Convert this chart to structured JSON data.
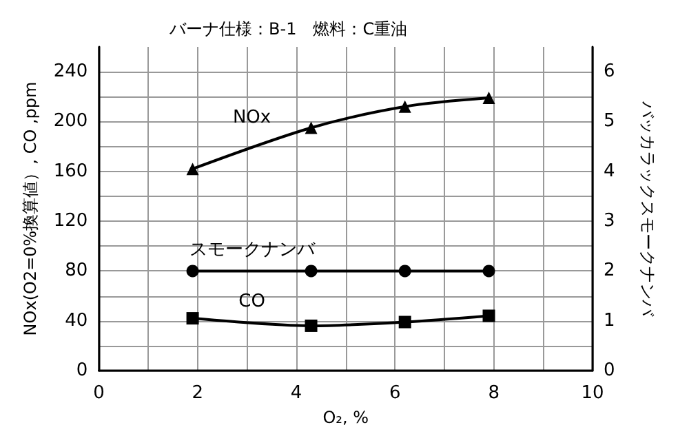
{
  "chart_data": {
    "type": "line",
    "title": "バーナ仕様：B-1　燃料：C重油",
    "xlabel": "O₂, %",
    "ylabel": "NOx(O2=0%換算値）, CO ,ppm",
    "y2label": "バッカラックスモークナンバ",
    "x": [
      1.9,
      4.3,
      6.2,
      7.9
    ],
    "series": [
      {
        "name": "NOx",
        "color": "#000000",
        "marker": "triangle",
        "values": [
          162,
          195,
          212,
          219
        ]
      },
      {
        "name": "スモークナンバ",
        "color": "#000000",
        "marker": "circle",
        "axis": "y2",
        "values": [
          2,
          2,
          2,
          2
        ]
      },
      {
        "name": "CO",
        "color": "#000000",
        "marker": "square",
        "values": [
          42,
          36,
          39,
          44
        ]
      }
    ],
    "xlim": [
      0,
      10
    ],
    "xticks": [
      0,
      {
        "value": 1,
        "label": null
      },
      2,
      {
        "value": 3,
        "label": null
      },
      4,
      {
        "value": 5,
        "label": null
      },
      6,
      {
        "value": 7,
        "label": null
      },
      8,
      {
        "value": 9,
        "label": null
      },
      10
    ],
    "ylim": [
      0,
      260
    ],
    "yticks": [
      0,
      {
        "value": 20,
        "label": null
      },
      40,
      {
        "value": 60,
        "label": null
      },
      80,
      {
        "value": 100,
        "label": null
      },
      120,
      {
        "value": 140,
        "label": null
      },
      160,
      {
        "value": 180,
        "label": null
      },
      200,
      {
        "value": 220,
        "label": null
      },
      240
    ],
    "y2lim": [
      0,
      6.5
    ],
    "y2ticks": [
      0,
      1,
      2,
      3,
      4,
      5,
      6
    ],
    "grid": true,
    "legend": false
  }
}
